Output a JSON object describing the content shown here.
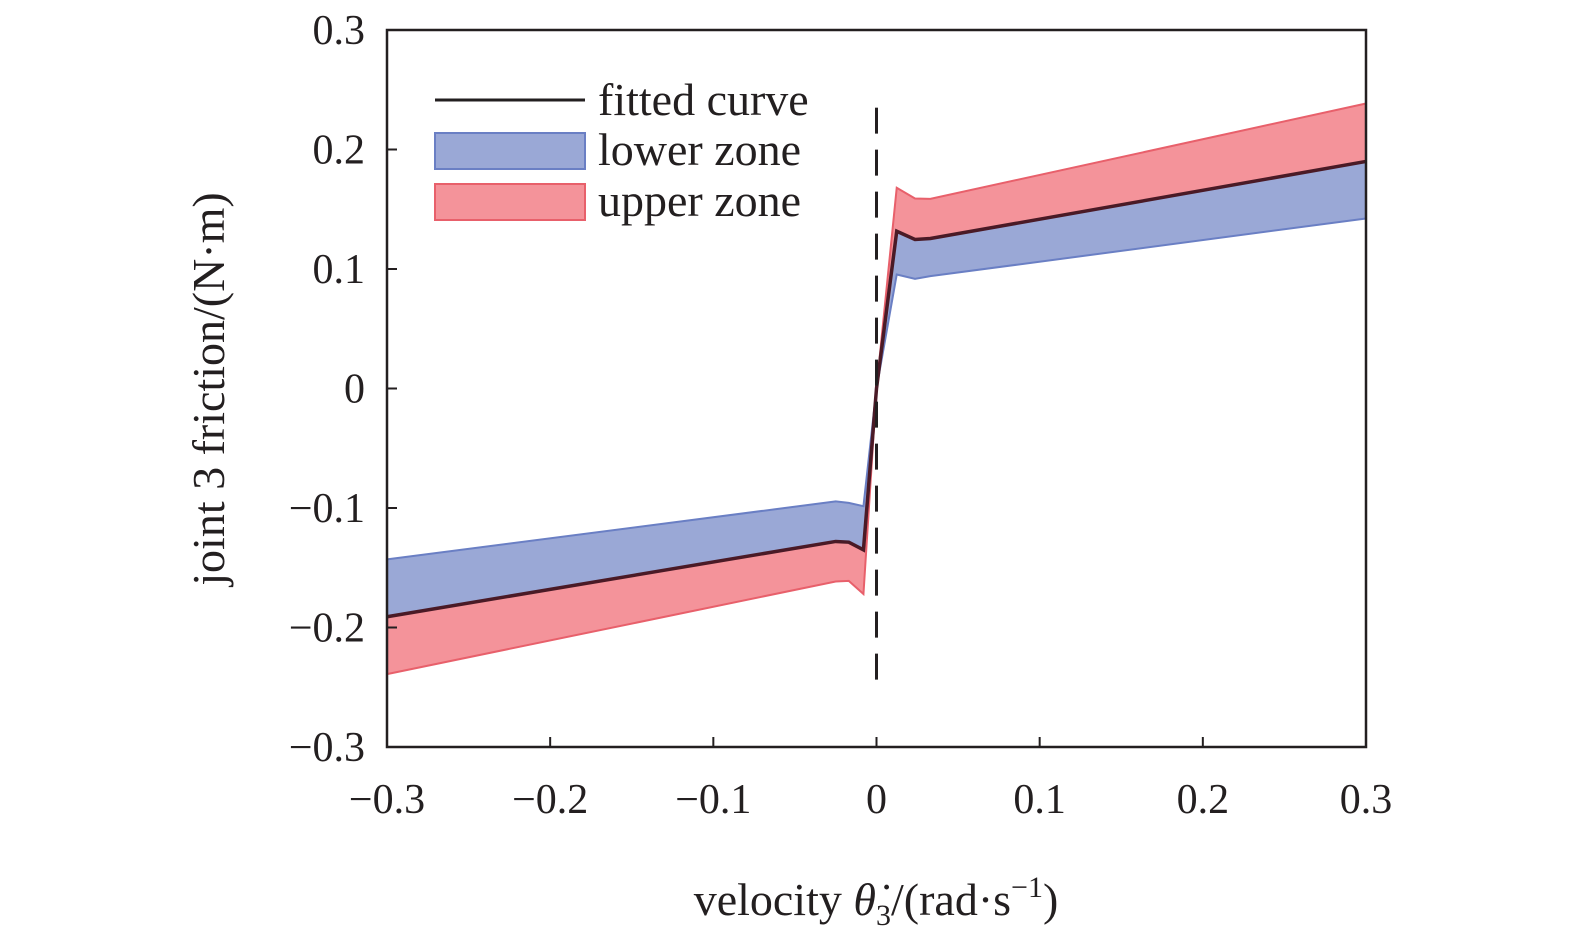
{
  "chart_data": {
    "type": "area",
    "title": "",
    "xlabel": {
      "prefix": "velocity ",
      "symbol": "θ̇",
      "sub": "3",
      "mid": "/(rad·s",
      "sup": "−1",
      "suffix": ")"
    },
    "ylabel": "joint 3 friction/(N·m)",
    "xlim": [
      -0.3,
      0.3
    ],
    "ylim": [
      -0.3,
      0.3
    ],
    "xticks": [
      -0.3,
      -0.2,
      -0.1,
      0,
      0.1,
      0.2,
      0.3
    ],
    "xtick_labels": [
      "−0.3",
      "−0.2",
      "−0.1",
      "0",
      "0.1",
      "0.2",
      "0.3"
    ],
    "yticks": [
      -0.3,
      -0.2,
      -0.1,
      0,
      0.1,
      0.2,
      0.3
    ],
    "ytick_labels": [
      "−0.3",
      "−0.2",
      "−0.1",
      "0",
      "0.1",
      "0.2",
      "0.3"
    ],
    "grid": false,
    "legend_position": "top-left",
    "x": [
      -0.3,
      -0.025,
      -0.017,
      -0.008,
      0,
      0.0124,
      0.0236,
      0.033,
      0.3
    ],
    "series": [
      {
        "name": "fitted curve",
        "color": "#4a1a26",
        "values": [
          -0.191,
          -0.128,
          -0.1286,
          -0.135,
          0,
          0.1316,
          0.1247,
          0.1255,
          0.19
        ]
      },
      {
        "name": "lower zone",
        "fill": "#9aa8d6",
        "edge": "#6a7fc4",
        "bound": [
          -0.143,
          -0.0945,
          -0.0957,
          -0.0985,
          0,
          0.0954,
          0.0918,
          0.094,
          0.1423
        ]
      },
      {
        "name": "upper zone",
        "fill": "#f4939a",
        "edge": "#e8606b",
        "bound": [
          -0.239,
          -0.1615,
          -0.161,
          -0.172,
          0,
          0.168,
          0.159,
          0.1587,
          0.2385
        ]
      }
    ],
    "reference_line": {
      "x": 0,
      "style": "dashed",
      "y_range": [
        -0.25,
        0.235
      ]
    }
  }
}
